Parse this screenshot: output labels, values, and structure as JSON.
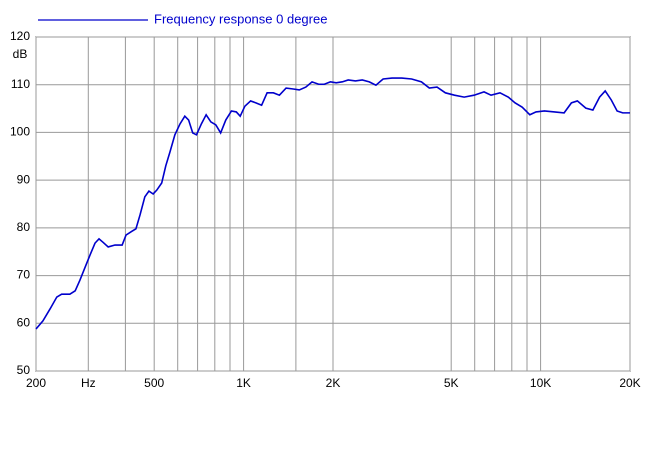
{
  "chart_data": {
    "type": "line",
    "xscale": "log",
    "grid": true,
    "legend": "top-left",
    "y_label": "dB",
    "xlim": [
      200,
      20000
    ],
    "ylim": [
      50,
      120
    ],
    "yticks": [
      50,
      60,
      70,
      80,
      90,
      100,
      110,
      120
    ],
    "xticks": [
      200,
      {
        "value": 300,
        "label": "Hz"
      },
      {
        "value": 400,
        "label": null
      },
      500,
      {
        "value": 600,
        "label": null
      },
      {
        "value": 700,
        "label": null
      },
      {
        "value": 800,
        "label": null
      },
      {
        "value": 900,
        "label": null
      },
      {
        "value": 1000,
        "label": "1K"
      },
      {
        "value": 1500,
        "label": null
      },
      {
        "value": 2000,
        "label": "2K"
      },
      {
        "value": 5000,
        "label": "5K"
      },
      {
        "value": 6000,
        "label": null
      },
      {
        "value": 7000,
        "label": null
      },
      {
        "value": 8000,
        "label": null
      },
      {
        "value": 9000,
        "label": null
      },
      {
        "value": 10000,
        "label": "10K"
      },
      {
        "value": 20000,
        "label": "20K"
      }
    ],
    "x": [
      200,
      211,
      223,
      235,
      244,
      260,
      271,
      281,
      292,
      304,
      316,
      326,
      336,
      350,
      369,
      390,
      402,
      421,
      434,
      448,
      465,
      480,
      496,
      510,
      530,
      547,
      565,
      587,
      611,
      634,
      653,
      674,
      694,
      721,
      748,
      776,
      806,
      837,
      871,
      910,
      945,
      974,
      1010,
      1056,
      1100,
      1150,
      1200,
      1260,
      1320,
      1390,
      1470,
      1540,
      1620,
      1700,
      1790,
      1870,
      1960,
      2050,
      2150,
      2250,
      2380,
      2510,
      2650,
      2790,
      2950,
      3160,
      3410,
      3680,
      3970,
      4220,
      4480,
      4780,
      5130,
      5530,
      5970,
      6450,
      6810,
      7300,
      7790,
      8200,
      8670,
      9200,
      9650,
      10300,
      11140,
      12000,
      12700,
      13300,
      14200,
      15000,
      15800,
      16500,
      17300,
      18100,
      18900,
      20000
    ],
    "series": [
      {
        "name": "Frequency response 0 degree",
        "color": "#0000cc",
        "values": [
          58.8,
          60.5,
          63,
          65.5,
          66.1,
          66.1,
          66.8,
          69,
          71.6,
          74.3,
          76.8,
          77.7,
          77,
          76,
          76.4,
          76.4,
          78.5,
          79.3,
          79.8,
          82.7,
          86.5,
          87.7,
          87.1,
          87.9,
          89.4,
          93,
          95.9,
          99.5,
          101.8,
          103.4,
          102.6,
          99.9,
          99.5,
          101.8,
          103.7,
          102.2,
          101.6,
          99.9,
          102.6,
          104.5,
          104.3,
          103.4,
          105.5,
          106.6,
          106.2,
          105.7,
          108.3,
          108.3,
          107.8,
          109.3,
          109.1,
          108.9,
          109.5,
          110.6,
          110.1,
          110.1,
          110.6,
          110.4,
          110.6,
          111,
          110.8,
          111,
          110.6,
          109.9,
          111.2,
          111.4,
          111.4,
          111.2,
          110.6,
          109.3,
          109.5,
          108.3,
          107.8,
          107.4,
          107.8,
          108.5,
          107.8,
          108.3,
          107.4,
          106.2,
          105.3,
          103.7,
          104.3,
          104.5,
          104.3,
          104.1,
          106.2,
          106.6,
          105.1,
          104.7,
          107.4,
          108.7,
          106.8,
          104.5,
          104.1,
          104.1
        ]
      }
    ]
  }
}
